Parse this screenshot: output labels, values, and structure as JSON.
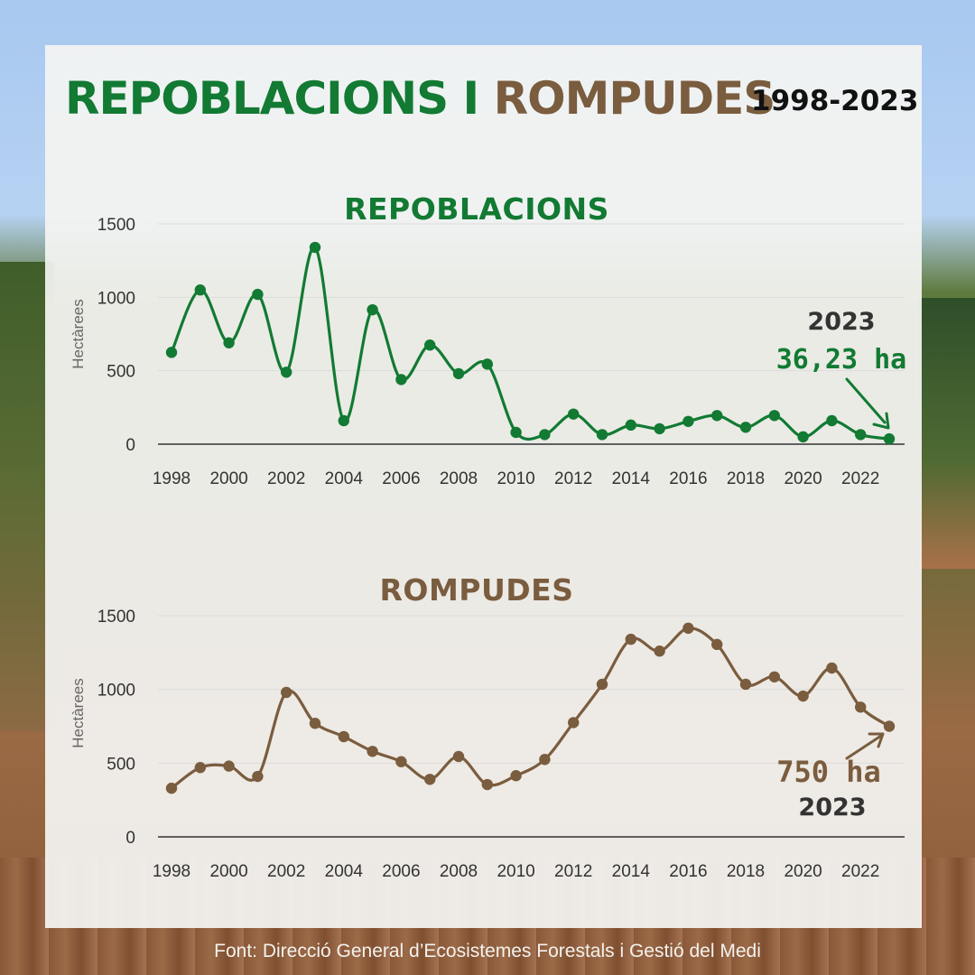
{
  "title": {
    "part1": "REPOBLACIONS I",
    "part2": "ROMPUDES",
    "years": "1998-2023"
  },
  "colors": {
    "green": "#127a33",
    "brown": "#7a5c3e"
  },
  "source": "Font: Direcció General d’Ecosistemes Forestals i Gestió del Medi",
  "chart_data": [
    {
      "type": "line",
      "title": "REPOBLACIONS",
      "ylabel": "Hectàrees",
      "xlabel": "",
      "ylim": [
        0,
        1500
      ],
      "yticks": [
        0,
        500,
        1000,
        1500
      ],
      "xticks": [
        1998,
        2000,
        2002,
        2004,
        2006,
        2008,
        2010,
        2012,
        2014,
        2016,
        2018,
        2020,
        2022
      ],
      "grid": true,
      "color": "#127a33",
      "x": [
        1998,
        1999,
        2000,
        2001,
        2002,
        2003,
        2004,
        2005,
        2006,
        2007,
        2008,
        2009,
        2010,
        2011,
        2012,
        2013,
        2014,
        2015,
        2016,
        2017,
        2018,
        2019,
        2020,
        2021,
        2022,
        2023
      ],
      "values": [
        625,
        1050,
        690,
        1020,
        490,
        1340,
        160,
        915,
        440,
        675,
        480,
        545,
        80,
        65,
        205,
        65,
        130,
        105,
        155,
        195,
        115,
        195,
        50,
        160,
        65,
        36.23
      ],
      "annotation": {
        "year": "2023",
        "value": "36,23 ha"
      }
    },
    {
      "type": "line",
      "title": "ROMPUDES",
      "ylabel": "Hectàrees",
      "xlabel": "",
      "ylim": [
        0,
        1500
      ],
      "yticks": [
        0,
        500,
        1000,
        1500
      ],
      "xticks": [
        1998,
        2000,
        2002,
        2004,
        2006,
        2008,
        2010,
        2012,
        2014,
        2016,
        2018,
        2020,
        2022
      ],
      "grid": true,
      "color": "#7a5c3e",
      "x": [
        1998,
        1999,
        2000,
        2001,
        2002,
        2003,
        2004,
        2005,
        2006,
        2007,
        2008,
        2009,
        2010,
        2011,
        2012,
        2013,
        2014,
        2015,
        2016,
        2017,
        2018,
        2019,
        2020,
        2021,
        2022,
        2023
      ],
      "values": [
        330,
        470,
        480,
        410,
        980,
        770,
        680,
        580,
        510,
        390,
        545,
        355,
        415,
        525,
        775,
        1035,
        1340,
        1260,
        1415,
        1305,
        1035,
        1085,
        955,
        1145,
        880,
        750
      ],
      "annotation": {
        "year": "2023",
        "value": "750 ha"
      }
    }
  ]
}
